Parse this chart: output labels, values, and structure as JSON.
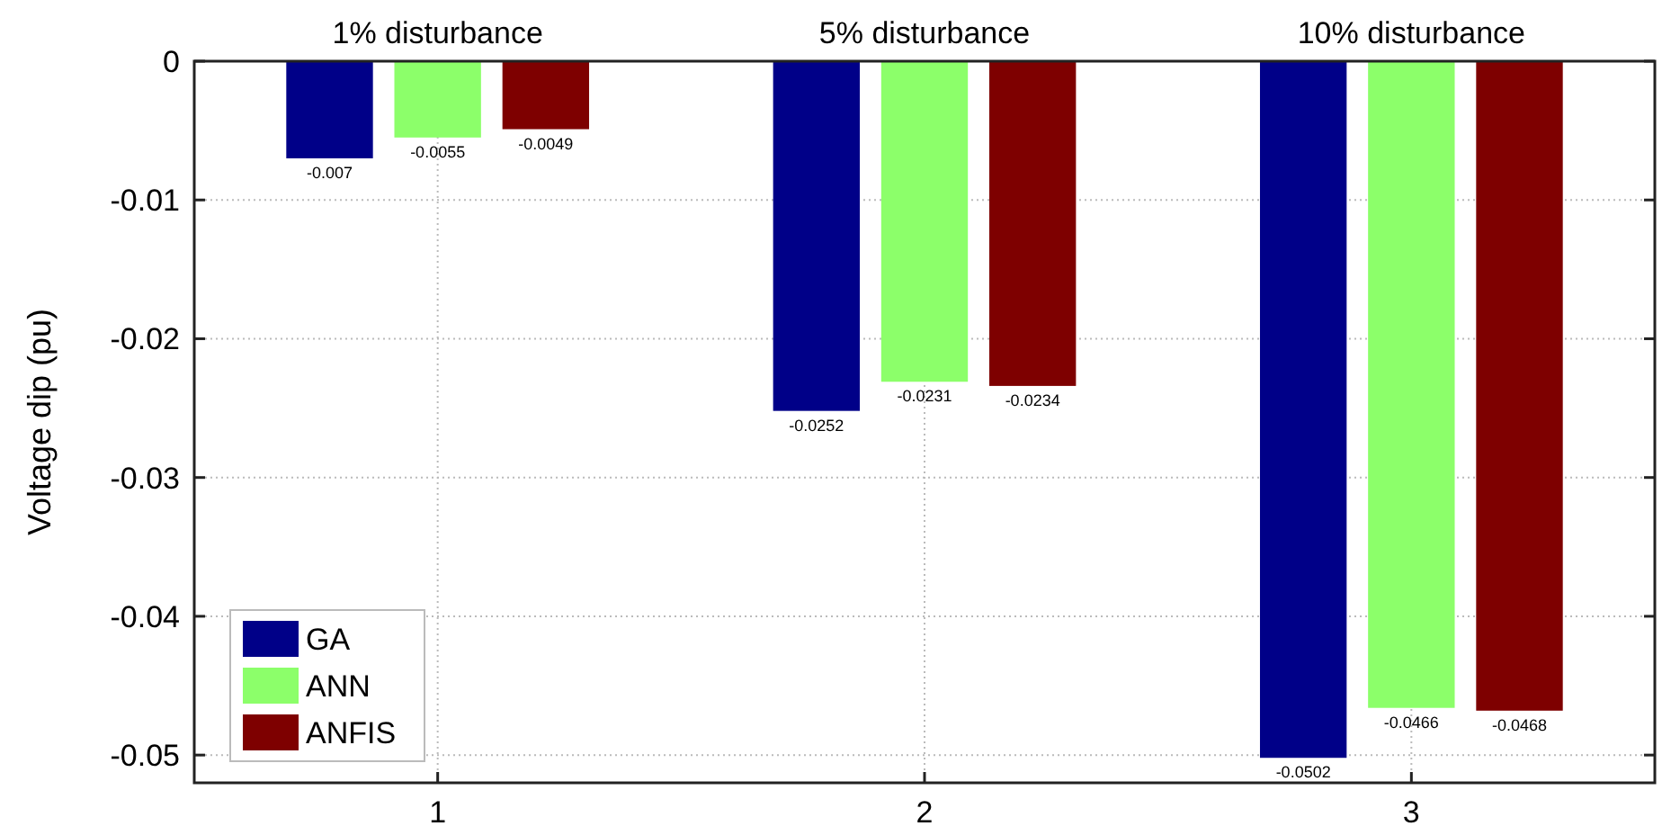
{
  "chart_data": {
    "type": "bar",
    "ylabel": "Voltage dip (pu)",
    "categories": [
      "1",
      "2",
      "3"
    ],
    "series": [
      {
        "name": "GA",
        "color": "#000088",
        "values": [
          -0.007,
          -0.0252,
          -0.0502
        ]
      },
      {
        "name": "ANN",
        "color": "#8cff6a",
        "values": [
          -0.0055,
          -0.0231,
          -0.0466
        ]
      },
      {
        "name": "ANFIS",
        "color": "#7e0000",
        "values": [
          -0.0049,
          -0.0234,
          -0.0468
        ]
      }
    ],
    "ylim": [
      -0.052,
      0
    ],
    "yticks": [
      -0.05,
      -0.04,
      -0.03,
      -0.02,
      -0.01,
      0
    ],
    "grid": true,
    "legend": "bottom left",
    "data_labels": true,
    "annotations": [
      "1% disturbance",
      "5% disturbance",
      "10% disturbance"
    ]
  }
}
